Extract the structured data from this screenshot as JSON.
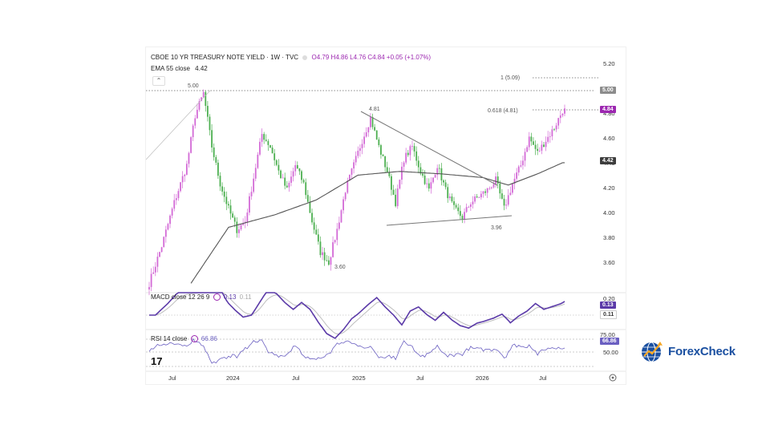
{
  "header": {
    "symbol": "CBOE 10 YR TREASURY NOTE YIELD · 1W · TVC",
    "ohlc": "O4.79 H4.86 L4.76 C4.84 +0.05 (+1.07%)",
    "ema_label": "EMA 55 close",
    "ema_value": "4.42",
    "collapse_glyph": "⌃"
  },
  "macd_header": {
    "label": "MACD close 12 26 9",
    "v1": "0.13",
    "v2": "0.11"
  },
  "rsi_header": {
    "label": "RSI 14 close",
    "v1": "66.86"
  },
  "price_axis": {
    "ticks": [
      "5.20",
      "4.80",
      "4.60",
      "4.40",
      "4.20",
      "4.00",
      "3.80",
      "3.60"
    ]
  },
  "macd_axis": {
    "ticks": [
      "0.20"
    ]
  },
  "rsi_axis": {
    "ticks": [
      "75.00",
      "50.00"
    ]
  },
  "badges": {
    "level_500": "5.00",
    "last_price": "4.84",
    "ema_now": "4.42",
    "macd_a": "0.13",
    "macd_b": "0.11",
    "rsi_now": "66.86"
  },
  "time_axis": {
    "labels": [
      "Jul",
      "2024",
      "Jul",
      "2025",
      "Jul",
      "2026",
      "Jul"
    ]
  },
  "annotations": {
    "peak_500": "5.00",
    "low_360": "3.60",
    "pk_481": "4.81",
    "low_396": "3.96",
    "fib_1": "1 (5.09)",
    "fib_0618": "0.618 (4.81)"
  },
  "branding": {
    "logo_text": "ForexCheck",
    "tv_mark": "17"
  },
  "colors": {
    "up": "#d36ad6",
    "down": "#4caf50",
    "ema": "#555555",
    "macd": "#5b3aa8",
    "signal": "#bdbdbd",
    "rsi": "#6a5fc1",
    "last_price_badge": "#9c27b0",
    "level_badge": "#8c8c8c",
    "ema_badge": "#3d3d3d",
    "brand": "#1a4fa0"
  },
  "chart_data": {
    "type": "candlestick",
    "title": "CBOE 10 YR TREASURY NOTE YIELD · 1W · TVC",
    "ylim": [
      3.45,
      5.3
    ],
    "price_path_approx": [
      [
        0,
        3.45
      ],
      [
        6,
        3.75
      ],
      [
        12,
        4.1
      ],
      [
        18,
        4.4
      ],
      [
        22,
        4.8
      ],
      [
        26,
        4.98
      ],
      [
        30,
        4.55
      ],
      [
        34,
        4.25
      ],
      [
        38,
        4.05
      ],
      [
        42,
        3.88
      ],
      [
        46,
        3.95
      ],
      [
        50,
        4.3
      ],
      [
        54,
        4.65
      ],
      [
        58,
        4.55
      ],
      [
        62,
        4.35
      ],
      [
        66,
        4.2
      ],
      [
        70,
        4.4
      ],
      [
        74,
        4.25
      ],
      [
        78,
        3.95
      ],
      [
        82,
        3.7
      ],
      [
        86,
        3.62
      ],
      [
        90,
        3.88
      ],
      [
        94,
        4.2
      ],
      [
        98,
        4.4
      ],
      [
        102,
        4.6
      ],
      [
        106,
        4.78
      ],
      [
        110,
        4.55
      ],
      [
        114,
        4.35
      ],
      [
        118,
        4.1
      ],
      [
        122,
        4.45
      ],
      [
        126,
        4.55
      ],
      [
        130,
        4.35
      ],
      [
        134,
        4.2
      ],
      [
        138,
        4.4
      ],
      [
        142,
        4.2
      ],
      [
        146,
        4.05
      ],
      [
        150,
        3.98
      ],
      [
        154,
        4.1
      ],
      [
        158,
        4.15
      ],
      [
        162,
        4.2
      ],
      [
        166,
        4.28
      ],
      [
        170,
        4.05
      ],
      [
        174,
        4.25
      ],
      [
        178,
        4.4
      ],
      [
        182,
        4.62
      ],
      [
        186,
        4.5
      ],
      [
        190,
        4.6
      ],
      [
        194,
        4.7
      ],
      [
        198,
        4.84
      ]
    ],
    "ema55_path_approx": [
      [
        20,
        3.45
      ],
      [
        38,
        3.9
      ],
      [
        60,
        4.0
      ],
      [
        80,
        4.12
      ],
      [
        100,
        4.32
      ],
      [
        120,
        4.35
      ],
      [
        140,
        4.33
      ],
      [
        160,
        4.3
      ],
      [
        172,
        4.24
      ],
      [
        186,
        4.33
      ],
      [
        198,
        4.42
      ]
    ],
    "levels": [
      {
        "name": "5.00",
        "value": 5.0
      },
      {
        "name": "1 (5.09)",
        "value": 5.09
      },
      {
        "name": "0.618 (4.81)",
        "value": 4.81
      }
    ],
    "macd": {
      "ylim": [
        -0.25,
        0.25
      ],
      "visible_values": [
        "0.20",
        "0.13",
        "0.11"
      ]
    },
    "rsi": {
      "ylim": [
        20,
        85
      ],
      "visible_values": [
        "75.00",
        "50.00",
        "66.86"
      ]
    }
  }
}
